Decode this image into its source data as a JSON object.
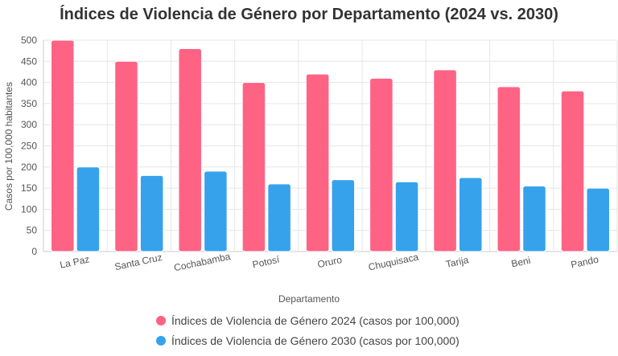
{
  "chart_data": {
    "type": "bar",
    "title": "Índices de Violencia de Género por Departamento (2024 vs. 2030)",
    "xlabel": "Departamento",
    "ylabel": "Casos por 100,000 habitantes",
    "ylim": [
      0,
      500
    ],
    "yticks": [
      "0",
      "50",
      "100",
      "150",
      "200",
      "250",
      "300",
      "350",
      "400",
      "450",
      "500"
    ],
    "grid": true,
    "legend_position": "bottom",
    "categories": [
      "La Paz",
      "Santa Cruz",
      "Cochabamba",
      "Potosí",
      "Oruro",
      "Chuquisaca",
      "Tarija",
      "Beni",
      "Pando"
    ],
    "series": [
      {
        "name": "Índices de Violencia de Género 2024 (casos por 100,000)",
        "color": "#ff6384",
        "values": [
          500,
          450,
          480,
          400,
          420,
          410,
          430,
          390,
          380
        ]
      },
      {
        "name": "Índices de Violencia de Género 2030 (casos por 100,000)",
        "color": "#36a2eb",
        "values": [
          200,
          180,
          190,
          160,
          170,
          165,
          175,
          155,
          150
        ]
      }
    ]
  }
}
